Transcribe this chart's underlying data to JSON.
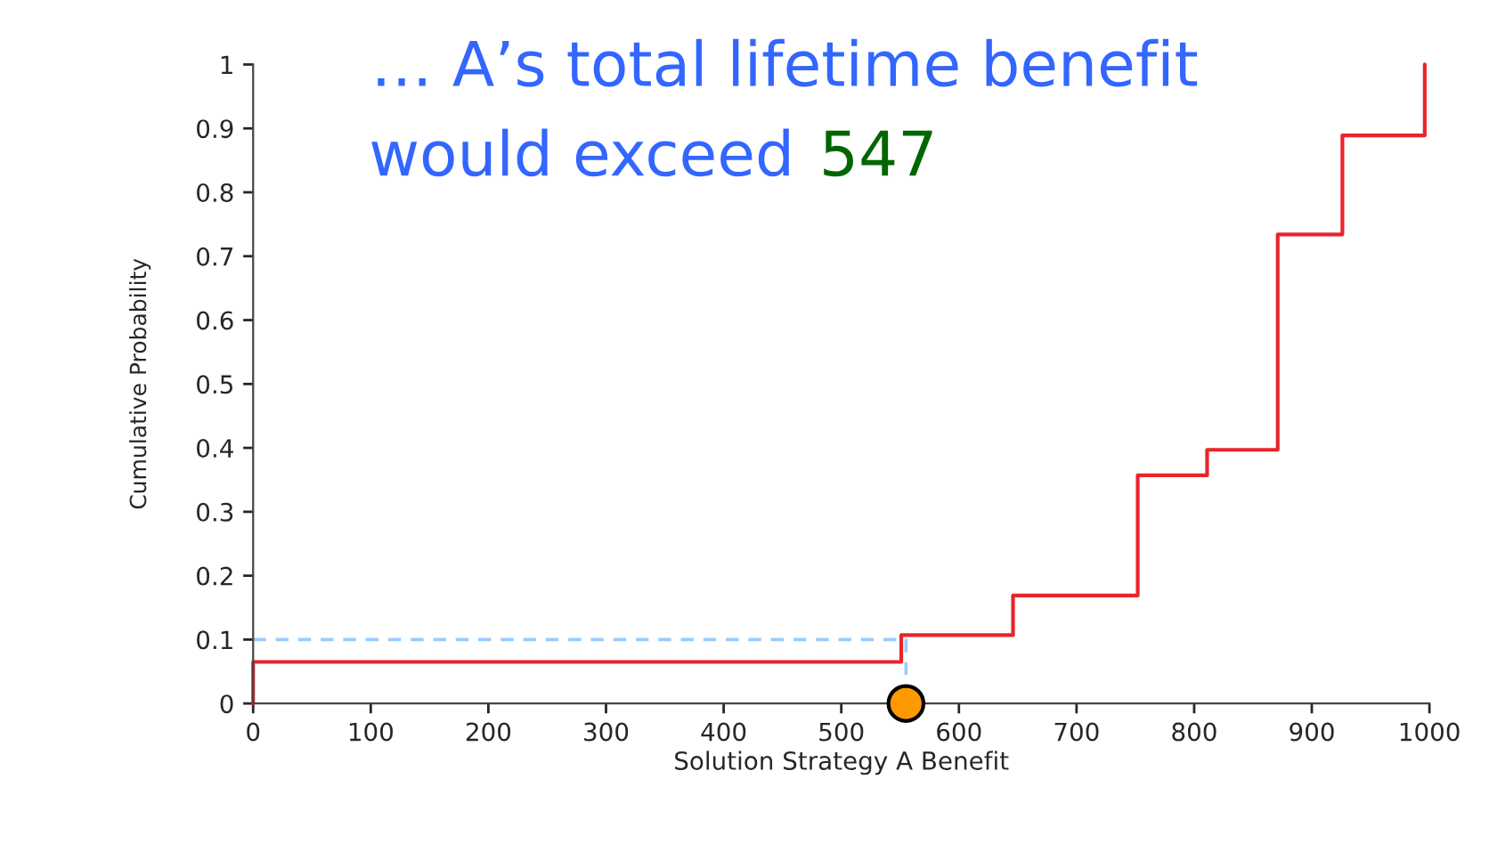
{
  "chart_data": {
    "type": "step",
    "title": "… A’s total lifetime benefit would exceed",
    "annotations": [
      "547"
    ],
    "xlabel": "Solution Strategy A Benefit",
    "ylabel": "Cumulative Probability",
    "series": [
      {
        "color": "#e8252a",
        "x": [
          0,
          0,
          551,
          646,
          752,
          811,
          871,
          926,
          996
        ],
        "values": [
          0,
          0.065,
          0.107,
          0.169,
          0.357,
          0.397,
          0.734,
          0.889,
          1.0
        ]
      },
      {
        "type": "line",
        "color": "#99ccff",
        "line_style": "dashed",
        "x": [
          0,
          555,
          555
        ],
        "values": [
          0.1,
          0.1,
          0
        ]
      },
      {
        "type": "scatter",
        "color": "#ff9900",
        "marker": "circle",
        "x": [
          555
        ],
        "values": [
          0
        ]
      }
    ],
    "xlim": [
      0,
      1000
    ],
    "xticks": [
      0,
      100,
      200,
      300,
      400,
      500,
      600,
      700,
      800,
      900,
      1000
    ],
    "ylim": [
      0,
      1
    ],
    "yticks": [
      0,
      0.1,
      0.2,
      0.3,
      0.4,
      0.5,
      0.6,
      0.7,
      0.8,
      0.9,
      1
    ],
    "grid": false,
    "legend": false
  }
}
